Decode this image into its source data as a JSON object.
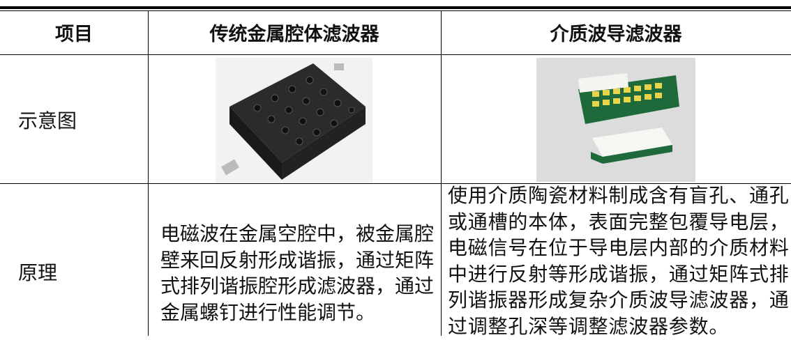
{
  "table": {
    "headers": [
      "项目",
      "传统金属腔体滤波器",
      "介质波导滤波器"
    ],
    "rows": [
      [
        "示意图"
      ],
      [
        "原理",
        "电磁波在金属空腔中，被金属腔壁来回反射形成谐振，通过矩阵式排列谐振腔形成滤波器，通过金属螺钉进行性能调节。",
        "使用介质陶瓷材料制成含有盲孔、通孔或通槽的本体，表面完整包覆导电层，电磁信号在位于导电层内部的介质材料中进行反射等形成谐振，通过矩阵式排列谐振器形成复杂介质波导滤波器，通过调整孔深等调整滤波器参数。"
      ]
    ]
  }
}
